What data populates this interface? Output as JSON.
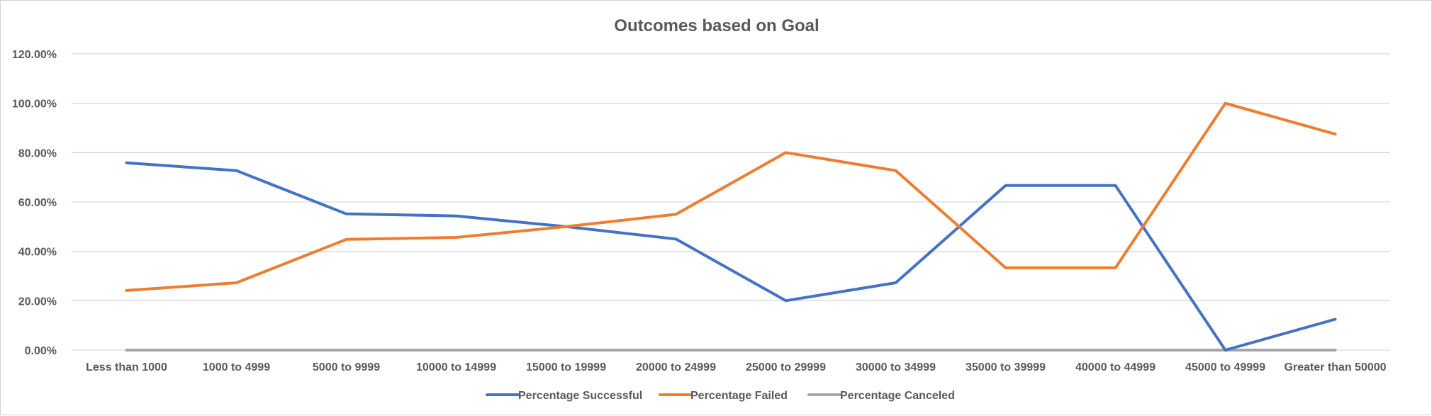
{
  "chart_data": {
    "type": "line",
    "title": "Outcomes based on Goal",
    "xlabel": "",
    "ylabel": "",
    "ylim": [
      0,
      1.2
    ],
    "y_ticks": [
      {
        "value": 0.0,
        "label": "0.00%"
      },
      {
        "value": 0.2,
        "label": "20.00%"
      },
      {
        "value": 0.4,
        "label": "40.00%"
      },
      {
        "value": 0.6,
        "label": "60.00%"
      },
      {
        "value": 0.8,
        "label": "80.00%"
      },
      {
        "value": 1.0,
        "label": "100.00%"
      },
      {
        "value": 1.2,
        "label": "120.00%"
      }
    ],
    "grid": true,
    "legend_position": "bottom",
    "categories": [
      "Less than 1000",
      "1000 to 4999",
      "5000 to 9999",
      "10000 to 14999",
      "15000 to 19999",
      "20000 to 24999",
      "25000 to 29999",
      "30000 to 34999",
      "35000 to 39999",
      "40000 to 44999",
      "45000 to 49999",
      "Greater than 50000"
    ],
    "series": [
      {
        "name": "Percentage Successful",
        "color": "#4472c4",
        "values": [
          0.7586,
          0.7273,
          0.5517,
          0.5435,
          0.5,
          0.45,
          0.2,
          0.2727,
          0.6667,
          0.6667,
          0.0,
          0.125
        ]
      },
      {
        "name": "Percentage Failed",
        "color": "#ed7d31",
        "values": [
          0.2414,
          0.2727,
          0.4483,
          0.4565,
          0.5,
          0.55,
          0.8,
          0.7273,
          0.3333,
          0.3333,
          1.0,
          0.875
        ]
      },
      {
        "name": "Percentage Canceled",
        "color": "#a5a5a5",
        "values": [
          0,
          0,
          0,
          0,
          0,
          0,
          0,
          0,
          0,
          0,
          0,
          0
        ]
      }
    ]
  }
}
